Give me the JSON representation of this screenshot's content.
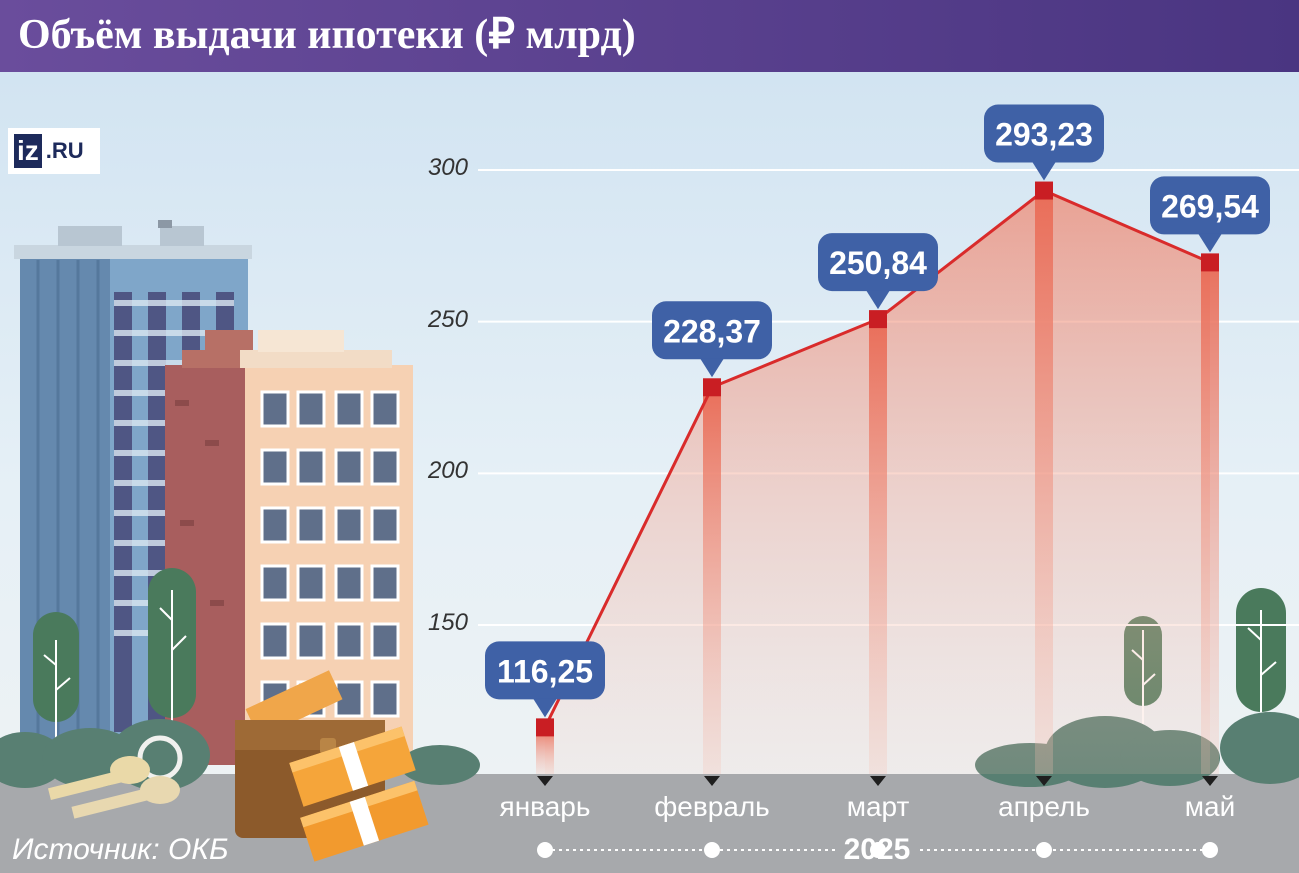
{
  "header": {
    "title": "Объём выдачи ипотеки (₽ млрд)"
  },
  "logo": {
    "iz": "iz",
    "ru": ".RU"
  },
  "source": "Источник: ОКБ",
  "colors": {
    "banner": "#5b4192",
    "line": "#d92b2b",
    "fill": "#ec7f6a",
    "bubble": "#3f61a6",
    "ground": "#a7a9ac"
  },
  "icons": [
    "keys-icon",
    "wallet-icon",
    "money-stack-icon",
    "building-icon",
    "tree-icon"
  ],
  "chart_data": {
    "type": "area",
    "title": "Объём выдачи ипотеки (₽ млрд)",
    "categories": [
      "январь",
      "февраль",
      "март",
      "апрель",
      "май"
    ],
    "year": "2025",
    "series": [
      {
        "values": [
          116.25,
          228.37,
          250.84,
          293.23,
          269.54
        ],
        "labels": [
          "116,25",
          "228,37",
          "250,84",
          "293,23",
          "269,54"
        ]
      }
    ],
    "yticks": [
      "150",
      "200",
      "250",
      "300"
    ],
    "ytick_values": [
      150,
      200,
      250,
      300
    ],
    "ylim": [
      108,
      300
    ],
    "grid": true
  }
}
